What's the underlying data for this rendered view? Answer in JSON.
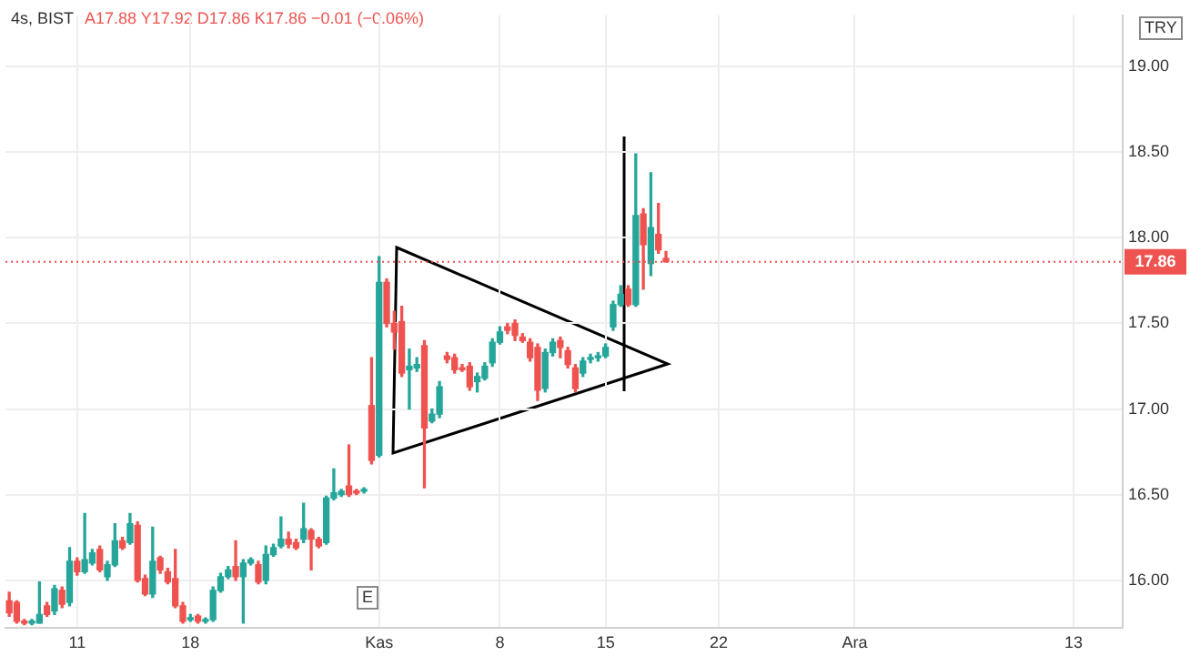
{
  "chart_data": {
    "type": "candlestick",
    "title": "4s, BIST",
    "subtitle": "A17.88 Y17.92 D17.86 K17.86 −0.01 (−0.06%)",
    "annotations": [
      "TRY",
      "E"
    ],
    "categories": [
      null,
      null,
      null,
      null,
      null,
      null,
      null,
      null,
      null,
      "11",
      null,
      null,
      null,
      null,
      null,
      null,
      null,
      null,
      null,
      null,
      null,
      null,
      null,
      null,
      "18",
      null,
      null,
      null,
      null,
      null,
      null,
      null,
      null,
      null,
      null,
      null,
      null,
      null,
      null,
      null,
      null,
      null,
      null,
      null,
      null,
      null,
      null,
      null,
      null,
      "Kas",
      null,
      null,
      null,
      null,
      null,
      null,
      null,
      null,
      null,
      null,
      null,
      null,
      null,
      null,
      null,
      "8",
      null,
      null,
      null,
      null,
      null,
      null,
      null,
      null,
      null,
      null,
      null,
      null,
      null,
      "15",
      null,
      null,
      null,
      null,
      null,
      null,
      null,
      null,
      null,
      null,
      null,
      null,
      null,
      null,
      "22",
      null,
      null,
      null,
      null,
      null,
      null,
      null,
      null,
      null,
      null,
      null,
      null,
      null,
      null,
      null,
      null,
      null,
      "Ara",
      null,
      null,
      null,
      null,
      null,
      null,
      null,
      null,
      null,
      null,
      null,
      null,
      null,
      null,
      null,
      null,
      null,
      null,
      null,
      null,
      null,
      null,
      null,
      null,
      null,
      null,
      null,
      null,
      "13",
      null,
      null,
      null,
      null,
      null,
      null
    ],
    "ohlc": [
      [
        15.88,
        15.93,
        15.79,
        15.81
      ],
      [
        15.87,
        15.88,
        15.75,
        15.76
      ],
      [
        15.76,
        15.77,
        15.74,
        15.75
      ],
      [
        15.75,
        15.77,
        15.74,
        15.76
      ],
      [
        15.75,
        15.99,
        15.75,
        15.8
      ],
      [
        15.85,
        15.87,
        15.79,
        15.8
      ],
      [
        15.82,
        15.97,
        15.8,
        15.95
      ],
      [
        15.94,
        15.96,
        15.84,
        15.86
      ],
      [
        15.87,
        16.19,
        15.85,
        16.11
      ],
      [
        16.11,
        16.13,
        16.03,
        16.05
      ],
      [
        16.05,
        16.39,
        16.04,
        16.12
      ],
      [
        16.1,
        16.18,
        16.09,
        16.16
      ],
      [
        16.18,
        16.2,
        16.05,
        16.06
      ],
      [
        16.02,
        16.11,
        16.0,
        16.09
      ],
      [
        16.09,
        16.33,
        16.08,
        16.23
      ],
      [
        16.23,
        16.25,
        16.18,
        16.19
      ],
      [
        16.22,
        16.39,
        16.21,
        16.33
      ],
      [
        16.32,
        16.34,
        15.99,
        16.0
      ],
      [
        16.01,
        16.03,
        15.91,
        15.92
      ],
      [
        15.92,
        16.31,
        15.9,
        16.11
      ],
      [
        16.13,
        16.14,
        16.04,
        16.06
      ],
      [
        16.05,
        16.07,
        15.98,
        15.99
      ],
      [
        16.01,
        16.18,
        15.84,
        15.85
      ],
      [
        15.85,
        15.87,
        15.75,
        15.76
      ],
      [
        15.77,
        15.8,
        15.76,
        15.78
      ],
      [
        15.79,
        15.8,
        15.75,
        15.76
      ],
      [
        15.76,
        15.78,
        15.75,
        15.77
      ],
      [
        15.77,
        15.96,
        15.76,
        15.94
      ],
      [
        15.94,
        16.04,
        15.93,
        16.02
      ],
      [
        16.02,
        16.08,
        16.01,
        16.06
      ],
      [
        16.08,
        16.23,
        16.0,
        16.02
      ],
      [
        16.02,
        16.12,
        15.75,
        16.1
      ],
      [
        16.1,
        16.13,
        16.09,
        16.12
      ],
      [
        16.09,
        16.11,
        15.98,
        15.99
      ],
      [
        16.0,
        16.2,
        15.98,
        16.15
      ],
      [
        16.15,
        16.21,
        16.14,
        16.19
      ],
      [
        16.2,
        16.37,
        16.19,
        16.24
      ],
      [
        16.24,
        16.28,
        16.19,
        16.21
      ],
      [
        16.22,
        16.24,
        16.18,
        16.19
      ],
      [
        16.24,
        16.45,
        16.22,
        16.3
      ],
      [
        16.29,
        16.3,
        16.06,
        16.24
      ],
      [
        16.24,
        16.25,
        16.19,
        16.2
      ],
      [
        16.22,
        16.49,
        16.21,
        16.48
      ],
      [
        16.48,
        16.65,
        16.47,
        16.51
      ],
      [
        16.5,
        16.53,
        16.49,
        16.52
      ],
      [
        16.55,
        16.79,
        16.49,
        16.5
      ],
      [
        16.52,
        16.53,
        16.5,
        16.51
      ],
      [
        16.52,
        16.54,
        16.51,
        16.53
      ],
      [
        17.02,
        17.3,
        16.68,
        16.7
      ],
      [
        16.73,
        17.89,
        16.72,
        17.74
      ],
      [
        17.74,
        17.76,
        17.48,
        17.5
      ],
      [
        17.5,
        17.57,
        17.35,
        17.45
      ],
      [
        17.51,
        17.6,
        17.19,
        17.21
      ],
      [
        17.23,
        17.35,
        17.0,
        17.25
      ],
      [
        17.24,
        17.3,
        17.22,
        17.26
      ],
      [
        17.37,
        17.4,
        16.54,
        16.89
      ],
      [
        16.93,
        17.0,
        16.92,
        16.97
      ],
      [
        16.97,
        17.16,
        16.95,
        17.13
      ],
      [
        17.31,
        17.33,
        17.27,
        17.29
      ],
      [
        17.3,
        17.32,
        17.21,
        17.23
      ],
      [
        17.24,
        17.26,
        17.22,
        17.23
      ],
      [
        17.25,
        17.27,
        17.11,
        17.13
      ],
      [
        17.16,
        17.21,
        17.1,
        17.19
      ],
      [
        17.18,
        17.27,
        17.17,
        17.25
      ],
      [
        17.27,
        17.41,
        17.25,
        17.39
      ],
      [
        17.39,
        17.48,
        17.38,
        17.45
      ],
      [
        17.48,
        17.5,
        17.44,
        17.46
      ],
      [
        17.5,
        17.52,
        17.4,
        17.43
      ],
      [
        17.42,
        17.44,
        17.39,
        17.4
      ],
      [
        17.39,
        17.41,
        17.28,
        17.3
      ],
      [
        17.36,
        17.38,
        17.05,
        17.11
      ],
      [
        17.12,
        17.35,
        17.1,
        17.33
      ],
      [
        17.33,
        17.41,
        17.31,
        17.39
      ],
      [
        17.4,
        17.42,
        17.3,
        17.36
      ],
      [
        17.34,
        17.36,
        17.24,
        17.26
      ],
      [
        17.24,
        17.26,
        17.1,
        17.12
      ],
      [
        17.21,
        17.3,
        17.19,
        17.28
      ],
      [
        17.29,
        17.32,
        17.27,
        17.3
      ],
      [
        17.3,
        17.33,
        17.28,
        17.31
      ],
      [
        17.31,
        17.38,
        17.3,
        17.36
      ],
      [
        17.48,
        17.63,
        17.46,
        17.61
      ],
      [
        17.61,
        17.72,
        17.6,
        17.67
      ],
      [
        17.7,
        17.72,
        17.6,
        17.61
      ],
      [
        17.61,
        18.49,
        17.6,
        18.13
      ],
      [
        18.14,
        18.17,
        17.7,
        17.96
      ],
      [
        17.85,
        18.38,
        17.78,
        18.06
      ],
      [
        18.02,
        18.2,
        17.91,
        17.93
      ],
      [
        17.88,
        17.92,
        17.86,
        17.86
      ],
      null,
      null,
      null,
      null,
      null,
      null,
      null,
      null,
      null,
      null,
      null,
      null,
      null,
      null,
      null,
      null,
      null,
      null,
      null,
      null,
      null,
      null,
      null,
      null,
      null,
      null,
      null,
      null,
      null,
      null,
      null,
      null,
      null,
      null,
      null,
      null,
      null,
      null,
      null,
      null,
      null,
      null,
      null,
      null,
      null,
      null,
      null,
      null,
      null,
      null,
      null,
      null,
      null,
      null,
      null,
      null,
      null,
      null,
      null,
      null
    ],
    "colors": [
      "#ef5350",
      "#ef5350",
      "#ef5350",
      "#26a69a",
      "#26a69a",
      "#ef5350",
      "#26a69a",
      "#ef5350",
      "#26a69a",
      "#ef5350",
      "#26a69a",
      "#26a69a",
      "#ef5350",
      "#26a69a",
      "#26a69a",
      "#ef5350",
      "#26a69a",
      "#ef5350",
      "#ef5350",
      "#26a69a",
      "#ef5350",
      "#ef5350",
      "#ef5350",
      "#ef5350",
      "#26a69a",
      "#ef5350",
      "#26a69a",
      "#26a69a",
      "#26a69a",
      "#26a69a",
      "#ef5350",
      "#26a69a",
      "#26a69a",
      "#ef5350",
      "#26a69a",
      "#26a69a",
      "#26a69a",
      "#ef5350",
      "#ef5350",
      "#26a69a",
      "#ef5350",
      "#ef5350",
      "#26a69a",
      "#26a69a",
      "#26a69a",
      "#ef5350",
      "#ef5350",
      "#26a69a",
      "#ef5350",
      "#26a69a",
      "#ef5350",
      "#ef5350",
      "#ef5350",
      "#26a69a",
      "#26a69a",
      "#ef5350",
      "#26a69a",
      "#26a69a",
      "#ef5350",
      "#ef5350",
      "#ef5350",
      "#ef5350",
      "#26a69a",
      "#26a69a",
      "#26a69a",
      "#26a69a",
      "#ef5350",
      "#ef5350",
      "#ef5350",
      "#ef5350",
      "#ef5350",
      "#26a69a",
      "#26a69a",
      "#ef5350",
      "#ef5350",
      "#ef5350",
      "#26a69a",
      "#26a69a",
      "#26a69a",
      "#26a69a",
      "#26a69a",
      "#26a69a",
      "#ef5350",
      "#26a69a",
      "#ef5350",
      "#26a69a",
      "#ef5350",
      "#ef5350",
      null,
      null,
      null,
      null,
      null,
      null,
      null,
      null,
      null,
      null,
      null,
      null,
      null,
      null,
      null,
      null,
      null,
      null,
      null,
      null,
      null,
      null,
      null,
      null,
      null,
      null,
      null,
      null,
      null,
      null,
      null,
      null,
      null,
      null,
      null,
      null,
      null,
      null,
      null,
      null,
      null,
      null,
      null,
      null,
      null,
      null,
      null,
      null,
      null,
      null,
      null,
      null,
      null,
      null,
      null,
      null,
      null,
      null,
      null,
      null
    ],
    "ylim": [
      15.72,
      19.3
    ],
    "yticks": [
      {
        "value": 16,
        "label": "16.00"
      },
      {
        "value": 16.5,
        "label": "16.50"
      },
      {
        "value": 17,
        "label": "17.00"
      },
      {
        "value": 17.5,
        "label": "17.50"
      },
      {
        "value": 18,
        "label": "18.00"
      },
      {
        "value": 18.5,
        "label": "18.50"
      },
      {
        "value": 19,
        "label": "19.00"
      }
    ],
    "grid": true,
    "ref_lines": [
      {
        "axis": "y",
        "value": 17.86,
        "label": "17.86",
        "color": "#ef5350",
        "line_style": "dotted"
      }
    ]
  }
}
